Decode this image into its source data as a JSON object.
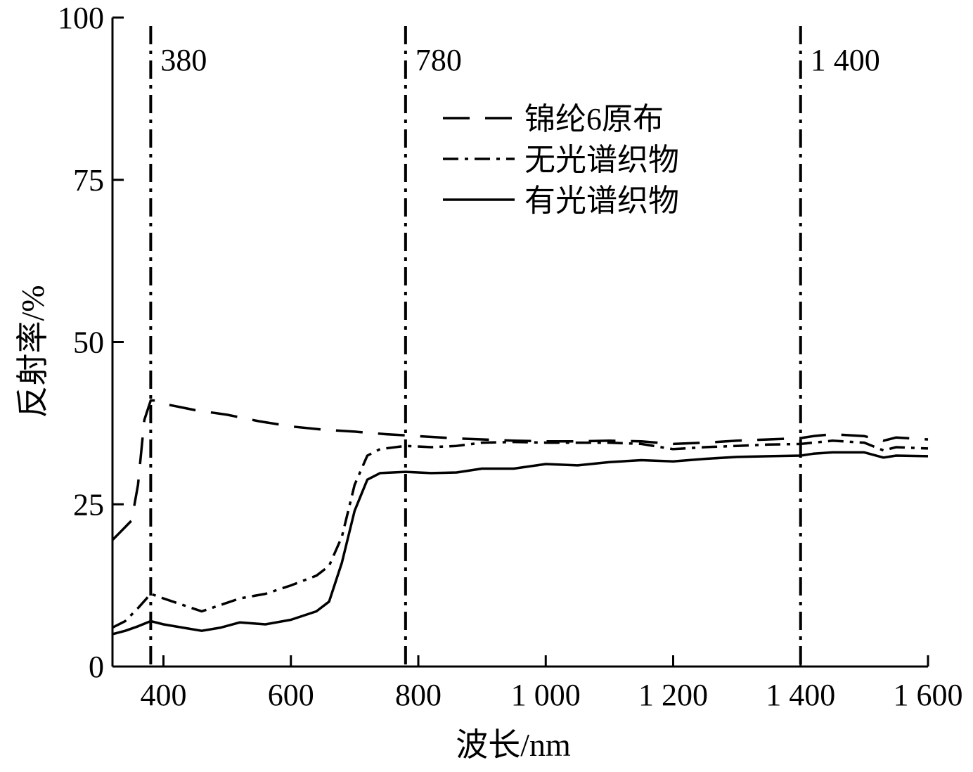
{
  "chart_data": {
    "type": "line",
    "title": "",
    "xlabel": "波长/nm",
    "ylabel": "反射率/%",
    "xlim": [
      320,
      1600
    ],
    "ylim": [
      0,
      100
    ],
    "x_ticks": [
      400,
      600,
      800,
      1000,
      1200,
      1400,
      1600
    ],
    "x_tick_labels": [
      "400",
      "600",
      "800",
      "1 000",
      "1 200",
      "1 400",
      "1 600"
    ],
    "y_ticks": [
      0,
      25,
      50,
      75,
      100
    ],
    "y_tick_labels": [
      "0",
      "25",
      "50",
      "75",
      "100"
    ],
    "grid": false,
    "legend_position": "upper-middle",
    "reference_lines": [
      {
        "x": 380,
        "label": "380"
      },
      {
        "x": 780,
        "label": "780"
      },
      {
        "x": 1400,
        "label": "1 400"
      }
    ],
    "series": [
      {
        "name": "锦纶6原布",
        "style": "dashed",
        "x": [
          320,
          330,
          340,
          350,
          360,
          370,
          380,
          390,
          400,
          450,
          500,
          550,
          600,
          650,
          700,
          750,
          800,
          850,
          900,
          950,
          1000,
          1050,
          1100,
          1150,
          1200,
          1250,
          1300,
          1350,
          1400,
          1420,
          1450,
          1500,
          1530,
          1550,
          1600
        ],
        "values": [
          19.5,
          20.5,
          21.5,
          22.5,
          28,
          38,
          41,
          41,
          40.5,
          39.5,
          38.8,
          37.8,
          37,
          36.5,
          36.2,
          35.8,
          35.5,
          35.2,
          35,
          34.8,
          34.7,
          34.7,
          34.8,
          34.7,
          34.3,
          34.5,
          34.8,
          35,
          35.2,
          35.5,
          35.8,
          35.5,
          34.8,
          35.3,
          35
        ]
      },
      {
        "name": "无光谱织物",
        "style": "dashdot",
        "x": [
          320,
          340,
          360,
          380,
          400,
          430,
          460,
          490,
          520,
          560,
          600,
          640,
          660,
          680,
          700,
          720,
          740,
          780,
          820,
          860,
          900,
          950,
          1000,
          1050,
          1100,
          1150,
          1200,
          1250,
          1300,
          1350,
          1400,
          1420,
          1450,
          1500,
          1530,
          1550,
          1600
        ],
        "values": [
          6,
          7,
          9,
          11.2,
          10.5,
          9.5,
          8.5,
          9.5,
          10.5,
          11.2,
          12.5,
          14,
          15.5,
          20,
          28,
          32.5,
          33.5,
          34,
          33.8,
          34,
          34.5,
          34.6,
          34.5,
          34.5,
          34.5,
          34.3,
          33.5,
          33.8,
          34,
          34.2,
          34.3,
          34.5,
          34.8,
          34.5,
          33.3,
          33.8,
          33.6
        ]
      },
      {
        "name": "有光谱织物",
        "style": "solid",
        "x": [
          320,
          340,
          360,
          380,
          400,
          430,
          460,
          490,
          520,
          560,
          600,
          640,
          660,
          680,
          700,
          720,
          740,
          780,
          820,
          860,
          900,
          950,
          1000,
          1050,
          1100,
          1150,
          1200,
          1250,
          1300,
          1350,
          1400,
          1420,
          1450,
          1500,
          1530,
          1550,
          1600
        ],
        "values": [
          5,
          5.5,
          6.2,
          7,
          6.5,
          6,
          5.5,
          6,
          6.8,
          6.5,
          7.2,
          8.5,
          10,
          16,
          24,
          28.8,
          29.8,
          30,
          29.8,
          29.9,
          30.5,
          30.5,
          31.2,
          31,
          31.5,
          31.8,
          31.6,
          32,
          32.3,
          32.4,
          32.5,
          32.8,
          33,
          33,
          32.2,
          32.5,
          32.4
        ]
      }
    ]
  }
}
